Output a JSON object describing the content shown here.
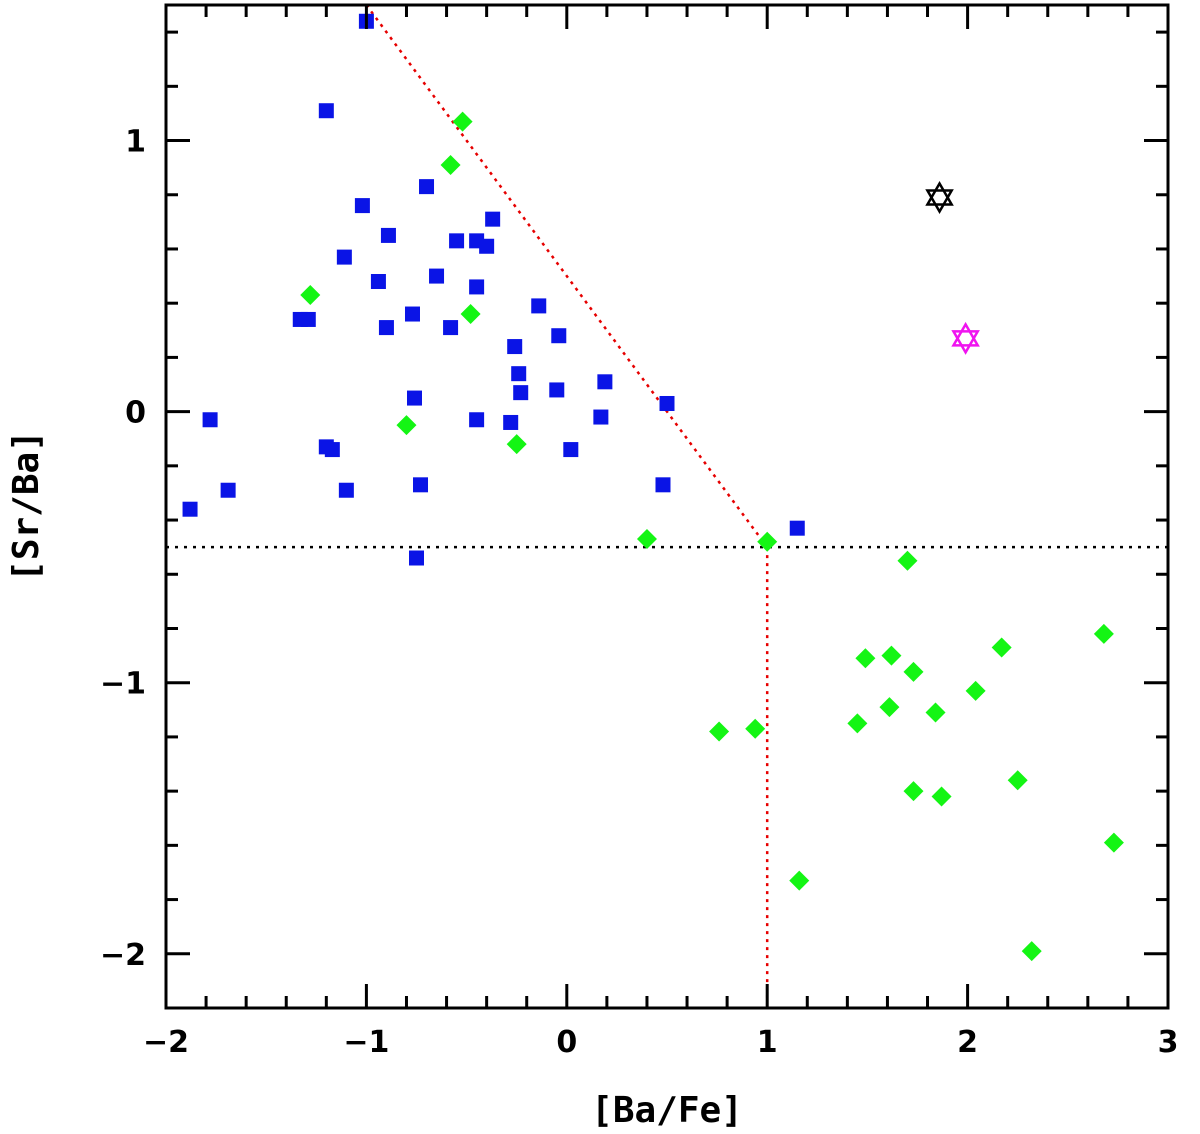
{
  "chart_data": {
    "type": "scatter",
    "title": "",
    "xlabel": "[Ba/Fe]",
    "ylabel": "[Sr/Ba]",
    "xlim": [
      -2,
      3
    ],
    "ylim": [
      -2.2,
      1.5
    ],
    "xticks": [
      -2,
      -1,
      0,
      1,
      2,
      3
    ],
    "xtick_labels": [
      "−2",
      "−1",
      "0",
      "1",
      "2",
      "3"
    ],
    "yticks": [
      -2,
      -1,
      0,
      1
    ],
    "ytick_labels": [
      "−2",
      "−1",
      "0",
      "1"
    ],
    "x_minor_step": 0.2,
    "y_minor_step": 0.2,
    "grid": false,
    "colors": {
      "blue_squares": "#0a14e6",
      "green_diamonds": "#14f514",
      "reference_lines": "#e60000",
      "threshold_line": "#000000",
      "star_black": "#000000",
      "star_magenta": "#f014f0"
    },
    "series": [
      {
        "name": "blue-squares",
        "marker": "square",
        "points": [
          [
            -1.0,
            1.44
          ],
          [
            -1.2,
            1.11
          ],
          [
            -1.02,
            0.76
          ],
          [
            -0.7,
            0.83
          ],
          [
            -0.89,
            0.65
          ],
          [
            -0.37,
            0.71
          ],
          [
            -0.55,
            0.63
          ],
          [
            -0.45,
            0.63
          ],
          [
            -0.4,
            0.61
          ],
          [
            -1.11,
            0.57
          ],
          [
            -0.65,
            0.5
          ],
          [
            -0.94,
            0.48
          ],
          [
            -0.45,
            0.46
          ],
          [
            -0.14,
            0.39
          ],
          [
            -1.33,
            0.34
          ],
          [
            -1.29,
            0.34
          ],
          [
            -0.77,
            0.36
          ],
          [
            -0.9,
            0.31
          ],
          [
            -0.58,
            0.31
          ],
          [
            -0.04,
            0.28
          ],
          [
            -0.26,
            0.24
          ],
          [
            -0.24,
            0.14
          ],
          [
            0.19,
            0.11
          ],
          [
            -0.05,
            0.08
          ],
          [
            -0.23,
            0.07
          ],
          [
            -0.76,
            0.05
          ],
          [
            0.5,
            0.03
          ],
          [
            0.17,
            -0.02
          ],
          [
            -1.78,
            -0.03
          ],
          [
            -0.45,
            -0.03
          ],
          [
            -0.28,
            -0.04
          ],
          [
            -1.2,
            -0.13
          ],
          [
            -1.17,
            -0.14
          ],
          [
            0.02,
            -0.14
          ],
          [
            -0.73,
            -0.27
          ],
          [
            0.48,
            -0.27
          ],
          [
            -1.69,
            -0.29
          ],
          [
            -1.1,
            -0.29
          ],
          [
            -1.88,
            -0.36
          ],
          [
            1.15,
            -0.43
          ],
          [
            -0.75,
            -0.54
          ]
        ]
      },
      {
        "name": "green-diamonds",
        "marker": "diamond",
        "points": [
          [
            -0.52,
            1.07
          ],
          [
            -0.58,
            0.91
          ],
          [
            -1.28,
            0.43
          ],
          [
            -0.48,
            0.36
          ],
          [
            -0.8,
            -0.05
          ],
          [
            -0.25,
            -0.12
          ],
          [
            0.4,
            -0.47
          ],
          [
            1.0,
            -0.48
          ],
          [
            1.7,
            -0.55
          ],
          [
            2.68,
            -0.82
          ],
          [
            2.17,
            -0.87
          ],
          [
            1.62,
            -0.9
          ],
          [
            1.49,
            -0.91
          ],
          [
            1.73,
            -0.96
          ],
          [
            2.04,
            -1.03
          ],
          [
            1.61,
            -1.09
          ],
          [
            1.84,
            -1.11
          ],
          [
            1.45,
            -1.15
          ],
          [
            0.94,
            -1.17
          ],
          [
            0.76,
            -1.18
          ],
          [
            2.25,
            -1.36
          ],
          [
            1.73,
            -1.4
          ],
          [
            1.87,
            -1.42
          ],
          [
            2.73,
            -1.59
          ],
          [
            1.16,
            -1.73
          ],
          [
            2.32,
            -1.99
          ]
        ]
      },
      {
        "name": "star-black",
        "marker": "star-of-david",
        "points": [
          [
            1.86,
            0.79
          ]
        ]
      },
      {
        "name": "star-magenta",
        "marker": "star-of-david",
        "points": [
          [
            1.99,
            0.27
          ]
        ]
      }
    ],
    "lines": [
      {
        "name": "diagonal-boundary",
        "style": "dotted",
        "points": [
          [
            -1.0,
            1.5
          ],
          [
            1.0,
            -0.5
          ]
        ]
      },
      {
        "name": "vertical-boundary",
        "style": "dotted",
        "points": [
          [
            1.0,
            -0.5
          ],
          [
            1.0,
            -2.2
          ]
        ]
      },
      {
        "name": "horizontal-threshold",
        "style": "dotted",
        "points": [
          [
            -2.0,
            -0.5
          ],
          [
            3.0,
            -0.5
          ]
        ]
      }
    ]
  }
}
